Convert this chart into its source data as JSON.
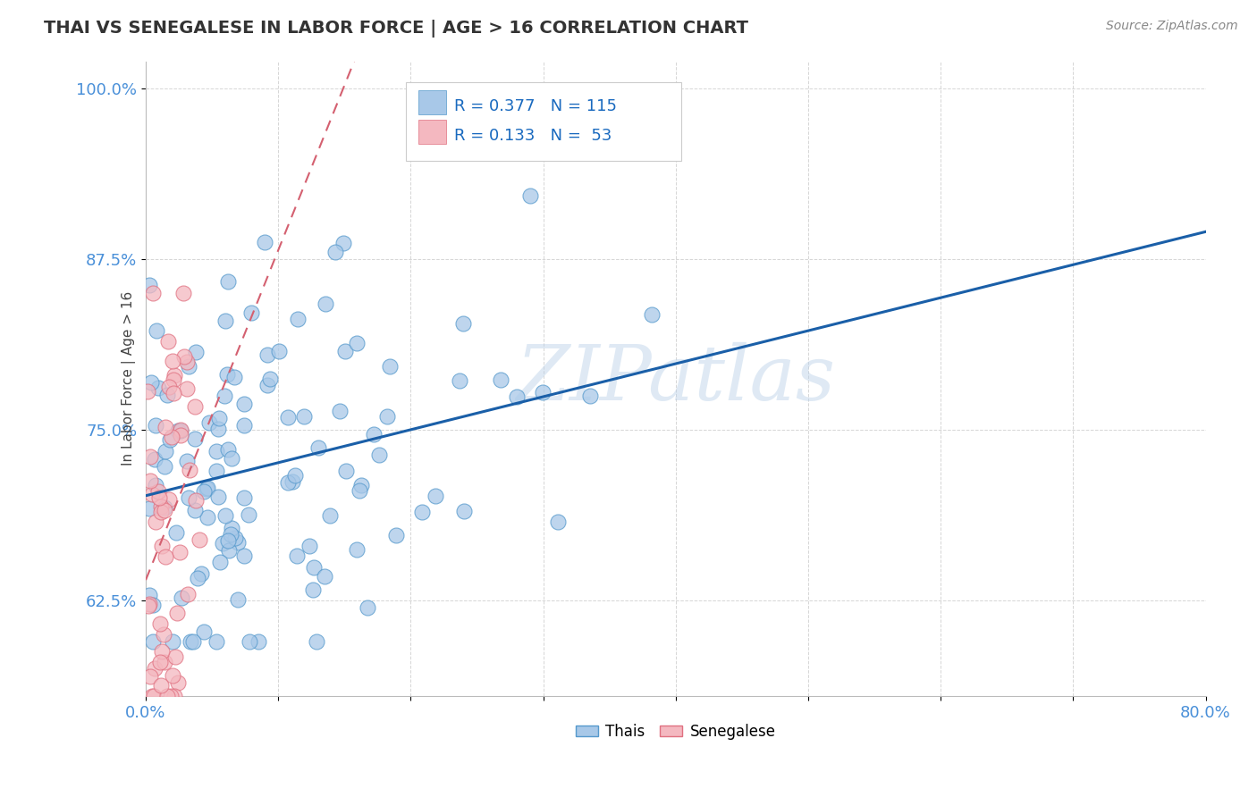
{
  "title": "THAI VS SENEGALESE IN LABOR FORCE | AGE > 16 CORRELATION CHART",
  "source_text": "Source: ZipAtlas.com",
  "ylabel": "In Labor Force | Age > 16",
  "xlim": [
    0.0,
    0.8
  ],
  "ylim": [
    0.555,
    1.02
  ],
  "xticks": [
    0.0,
    0.1,
    0.2,
    0.3,
    0.4,
    0.5,
    0.6,
    0.7,
    0.8
  ],
  "xticklabels": [
    "0.0%",
    "",
    "",
    "",
    "",
    "",
    "",
    "",
    "80.0%"
  ],
  "yticks": [
    0.625,
    0.75,
    0.875,
    1.0
  ],
  "yticklabels": [
    "62.5%",
    "75.0%",
    "87.5%",
    "100.0%"
  ],
  "thai_color": "#a8c8e8",
  "thai_edge": "#5599cc",
  "senegalese_color": "#f4b8c0",
  "senegalese_edge": "#e07080",
  "trend_thai_color": "#1a5fa8",
  "trend_senegalese_color": "#d46070",
  "legend_r_thai": "R = 0.377",
  "legend_n_thai": "N = 115",
  "legend_r_senegalese": "R = 0.133",
  "legend_n_senegalese": "N = 53",
  "watermark": "ZIPatlas",
  "thai_R": 0.377,
  "thai_N": 115,
  "senegalese_R": 0.133,
  "senegalese_N": 53,
  "grid_color": "#cccccc",
  "bg_color": "#ffffff",
  "title_color": "#333333",
  "tick_color": "#4a90d9",
  "source_color": "#888888"
}
